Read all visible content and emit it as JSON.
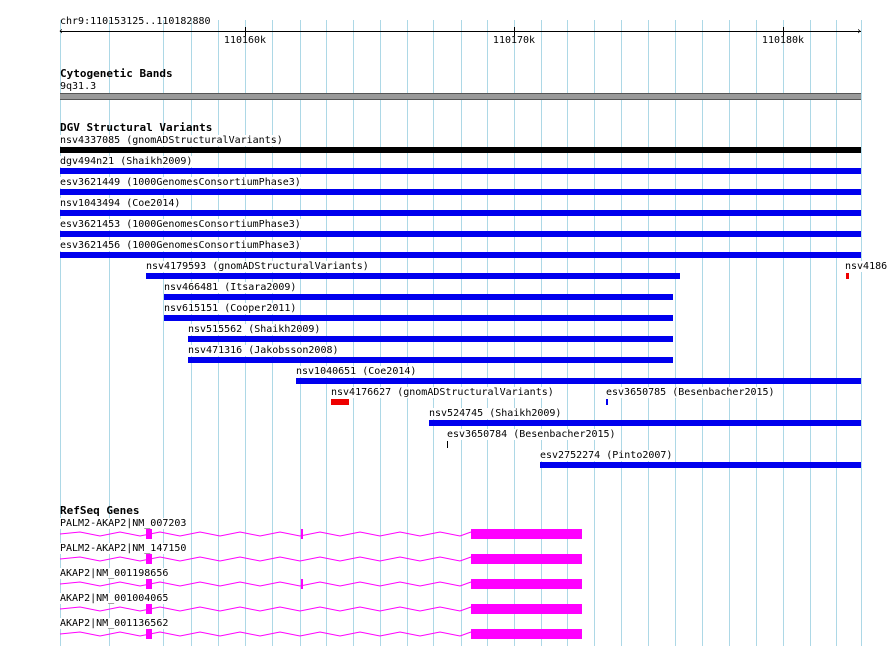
{
  "ruler": {
    "location": "chr9:110153125..110182880",
    "ticks": [
      "110160k",
      "110170k",
      "110180k"
    ]
  },
  "cytoband": {
    "title": "Cytogenetic Bands",
    "band": "9q31.3",
    "color": "#999999"
  },
  "dgv": {
    "title": "DGV Structural Variants",
    "features": [
      {
        "label": "nsv4337085 (gnomADStructuralVariants)",
        "color": "#000000"
      },
      {
        "label": "dgv494n21 (Shaikh2009)",
        "color": "#0000ee"
      },
      {
        "label": "esv3621449 (1000GenomesConsortiumPhase3)",
        "color": "#0000ee"
      },
      {
        "label": "nsv1043494 (Coe2014)",
        "color": "#0000ee"
      },
      {
        "label": "esv3621453 (1000GenomesConsortiumPhase3)",
        "color": "#0000ee"
      },
      {
        "label": "esv3621456 (1000GenomesConsortiumPhase3)",
        "color": "#0000ee"
      },
      {
        "label": "nsv4179593 (gnomADStructuralVariants)",
        "color": "#0000ee"
      },
      {
        "label": "nsv4186",
        "color": "#ee0000"
      },
      {
        "label": "nsv466481 (Itsara2009)",
        "color": "#0000ee"
      },
      {
        "label": "nsv615151 (Cooper2011)",
        "color": "#0000ee"
      },
      {
        "label": "nsv515562 (Shaikh2009)",
        "color": "#0000ee"
      },
      {
        "label": "nsv471316 (Jakobsson2008)",
        "color": "#0000ee"
      },
      {
        "label": "nsv1040651 (Coe2014)",
        "color": "#0000ee"
      },
      {
        "label": "nsv4176627 (gnomADStructuralVariants)",
        "color": "#ee0000"
      },
      {
        "label": "esv3650785 (Besenbacher2015)",
        "color": "#0000ee"
      },
      {
        "label": "nsv524745 (Shaikh2009)",
        "color": "#0000ee"
      },
      {
        "label": "esv3650784 (Besenbacher2015)",
        "color": "#000000"
      },
      {
        "label": "esv2752274 (Pinto2007)",
        "color": "#0000ee"
      }
    ]
  },
  "refseq": {
    "title": "RefSeq Genes",
    "color": "#ff00ff",
    "genes": [
      {
        "label": "PALM2-AKAP2|NM_007203"
      },
      {
        "label": "PALM2-AKAP2|NM_147150"
      },
      {
        "label": "AKAP2|NM_001198656"
      },
      {
        "label": "AKAP2|NM_001004065"
      },
      {
        "label": "AKAP2|NM_001136562"
      }
    ]
  }
}
